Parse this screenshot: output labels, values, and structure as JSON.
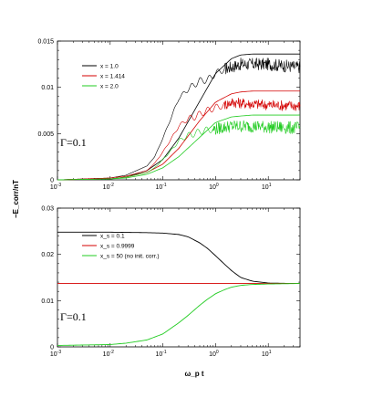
{
  "figure": {
    "ylabel": "−E_corr/nT",
    "xlabel": "ω_p t"
  },
  "chart_data": [
    {
      "type": "line",
      "panel": "top",
      "xscale": "log",
      "xlim": [
        0.001,
        40
      ],
      "ylim": [
        0,
        0.015
      ],
      "yticks": [
        "0",
        "0.005",
        "0.01",
        "0.015"
      ],
      "xticks": [
        "10",
        "10",
        "10",
        "10",
        "10",
        "10"
      ],
      "xtick_exps": [
        "-3",
        "-2",
        "-1",
        "0",
        "1",
        ""
      ],
      "legend_position": "top-left",
      "annotation": "Γ=0.1",
      "series": [
        {
          "name": "x = 1.0",
          "color": "#000000",
          "smooth": {
            "x": [
              0.001,
              0.01,
              0.02,
              0.05,
              0.1,
              0.2,
              0.5,
              1,
              2,
              3,
              5,
              10,
              35
            ],
            "y": [
              0,
              0.0001,
              0.0003,
              0.001,
              0.0022,
              0.0045,
              0.0085,
              0.0115,
              0.0131,
              0.0135,
              0.0136,
              0.0136,
              0.0136
            ]
          },
          "fluct": {
            "x": [
              0.001,
              0.01,
              0.02,
              0.05,
              0.07,
              0.1,
              0.15,
              0.2,
              0.3,
              0.4,
              0.5,
              0.7,
              1,
              1.5,
              2,
              3,
              5,
              10,
              35
            ],
            "y": [
              0,
              0.0002,
              0.0005,
              0.0015,
              0.0025,
              0.0045,
              0.007,
              0.0088,
              0.0098,
              0.0103,
              0.0107,
              0.0108,
              0.0115,
              0.012,
              0.0122,
              0.0125,
              0.0125,
              0.0125,
              0.0122
            ],
            "noise_from": 1.5,
            "noise_amp": 0.0007
          }
        },
        {
          "name": "x = 1.414",
          "color": "#d40000",
          "smooth": {
            "x": [
              0.001,
              0.01,
              0.02,
              0.05,
              0.1,
              0.2,
              0.5,
              1,
              2,
              3,
              5,
              10,
              35
            ],
            "y": [
              0,
              0.0001,
              0.0003,
              0.0008,
              0.0017,
              0.0034,
              0.0064,
              0.0084,
              0.0093,
              0.0095,
              0.0096,
              0.0096,
              0.0096
            ]
          },
          "fluct": {
            "x": [
              0.001,
              0.01,
              0.02,
              0.05,
              0.07,
              0.1,
              0.15,
              0.2,
              0.3,
              0.4,
              0.5,
              0.7,
              1,
              1.5,
              2,
              3,
              5,
              10,
              35
            ],
            "y": [
              0,
              0.0002,
              0.0004,
              0.001,
              0.0018,
              0.003,
              0.0046,
              0.0058,
              0.0066,
              0.0068,
              0.0071,
              0.0075,
              0.0078,
              0.0081,
              0.0084,
              0.0083,
              0.0082,
              0.0081,
              0.008
            ],
            "noise_from": 1.5,
            "noise_amp": 0.0006
          }
        },
        {
          "name": "x = 2.0",
          "color": "#22cc22",
          "smooth": {
            "x": [
              0.001,
              0.01,
              0.02,
              0.05,
              0.1,
              0.2,
              0.5,
              1,
              2,
              3,
              5,
              10,
              35
            ],
            "y": [
              0,
              0.0001,
              0.0002,
              0.0006,
              0.0013,
              0.0025,
              0.0046,
              0.0062,
              0.0068,
              0.0069,
              0.007,
              0.007,
              0.007
            ]
          },
          "fluct": {
            "x": [
              0.001,
              0.01,
              0.02,
              0.05,
              0.07,
              0.1,
              0.15,
              0.2,
              0.3,
              0.4,
              0.5,
              0.7,
              1,
              1.5,
              2,
              3,
              5,
              10,
              35
            ],
            "y": [
              0,
              0.0001,
              0.0003,
              0.0008,
              0.0013,
              0.0022,
              0.0033,
              0.0042,
              0.0048,
              0.005,
              0.0052,
              0.0054,
              0.0055,
              0.0057,
              0.0058,
              0.0058,
              0.0058,
              0.0057,
              0.0056
            ],
            "noise_from": 0.9,
            "noise_amp": 0.0007
          }
        }
      ]
    },
    {
      "type": "line",
      "panel": "bottom",
      "xscale": "log",
      "xlim": [
        0.001,
        40
      ],
      "ylim": [
        0,
        0.03
      ],
      "yticks": [
        "0",
        "0.01",
        "0.02",
        "0.03"
      ],
      "xticks": [
        "10",
        "10",
        "10",
        "10",
        "10",
        "10"
      ],
      "xtick_exps": [
        "-3",
        "-2",
        "-1",
        "0",
        "1",
        ""
      ],
      "legend_position": "top-left",
      "annotation": "Γ=0.1",
      "series": [
        {
          "name": "x_s = 0.1",
          "color": "#000000",
          "x": [
            0.001,
            0.01,
            0.05,
            0.1,
            0.2,
            0.3,
            0.5,
            0.7,
            1,
            1.5,
            2,
            3,
            5,
            10,
            35
          ],
          "y": [
            0.0248,
            0.0248,
            0.0247,
            0.0246,
            0.0243,
            0.0238,
            0.0225,
            0.0213,
            0.0197,
            0.0178,
            0.0165,
            0.015,
            0.0142,
            0.0138,
            0.0137
          ]
        },
        {
          "name": "x_s = 0.9999",
          "color": "#d40000",
          "x": [
            0.001,
            0.01,
            0.1,
            1,
            10,
            35
          ],
          "y": [
            0.0137,
            0.0137,
            0.0137,
            0.0137,
            0.0137,
            0.0137
          ]
        },
        {
          "name": "x_s = 50 (no init. corr.)",
          "color": "#22cc22",
          "x": [
            0.001,
            0.01,
            0.02,
            0.05,
            0.1,
            0.2,
            0.3,
            0.5,
            0.7,
            1,
            1.5,
            2,
            3,
            5,
            10,
            35
          ],
          "y": [
            0.0003,
            0.0005,
            0.0008,
            0.0015,
            0.0028,
            0.0052,
            0.0068,
            0.009,
            0.0103,
            0.0115,
            0.0124,
            0.0129,
            0.0133,
            0.0135,
            0.0136,
            0.0137
          ]
        }
      ]
    }
  ]
}
